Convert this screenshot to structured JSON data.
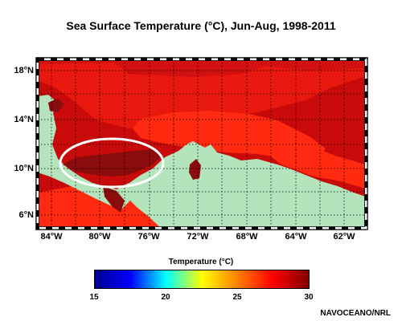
{
  "title": "Sea Surface Temperature (°C), Jun-Aug, 1998-2011",
  "map": {
    "lat_labels": [
      "18°N",
      "14°N",
      "10°N",
      "6°N"
    ],
    "lon_labels": [
      "84°W",
      "80°W",
      "76°W",
      "72°W",
      "68°W",
      "64°W",
      "62°W"
    ],
    "colors": {
      "ocean_warm": "#ff2a10",
      "ocean_hot": "#c80a0a",
      "ocean_hottest": "#8b0c0c",
      "land": "#b4e4bc",
      "annotation_ellipse": "#ffffff"
    }
  },
  "colorbar": {
    "title": "Temperature (°C)",
    "ticks": [
      "15",
      "20",
      "25",
      "30"
    ],
    "range": [
      15,
      30
    ],
    "colors": [
      "#00008f",
      "#0000ff",
      "#00ffff",
      "#ffff00",
      "#ff8000",
      "#ff0000",
      "#800000"
    ]
  },
  "credit": "NAVOCEANO/NRL"
}
